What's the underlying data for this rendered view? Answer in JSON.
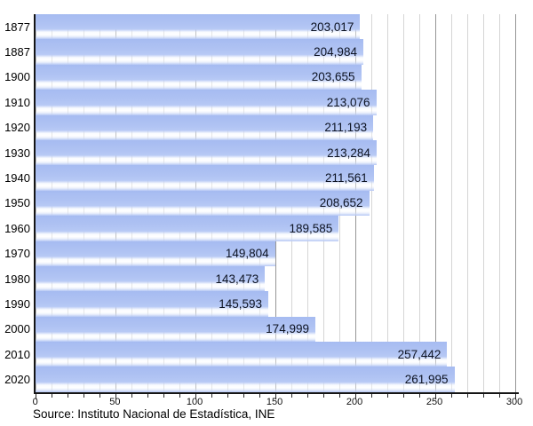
{
  "chart_data": {
    "type": "bar",
    "orientation": "horizontal",
    "title": "",
    "xlabel": "",
    "ylabel": "",
    "categories": [
      "1877",
      "1887",
      "1900",
      "1910",
      "1920",
      "1930",
      "1940",
      "1950",
      "1960",
      "1970",
      "1980",
      "1990",
      "2000",
      "2010",
      "2020"
    ],
    "values": [
      203017,
      204984,
      203655,
      213076,
      211193,
      213284,
      211561,
      208652,
      189585,
      149804,
      143473,
      145593,
      174999,
      257442,
      261995
    ],
    "value_labels": [
      "203,017",
      "204,984",
      "203,655",
      "213,076",
      "211,193",
      "213,284",
      "211,561",
      "208,652",
      "189,585",
      "149,804",
      "143,473",
      "145,593",
      "174,999",
      "257,442",
      "261,995"
    ],
    "xlim": [
      0,
      300
    ],
    "x_ticks": [
      0,
      50,
      100,
      150,
      200,
      250,
      300
    ],
    "x_minor_tick_step": 10,
    "x_value_divisor": 1000,
    "grid": "vertical: minor every 10, major every 50",
    "legend": "none",
    "bar_color": "#aec2f3",
    "bar_shine_color": "#f4f7fe",
    "value_text_color": "#0d1322",
    "axis_color": "#151515",
    "minor_grid_color": "#d5d5d5",
    "major_grid_color": "#969696"
  },
  "source_text": "Source: Instituto Nacional de Estadística, INE"
}
